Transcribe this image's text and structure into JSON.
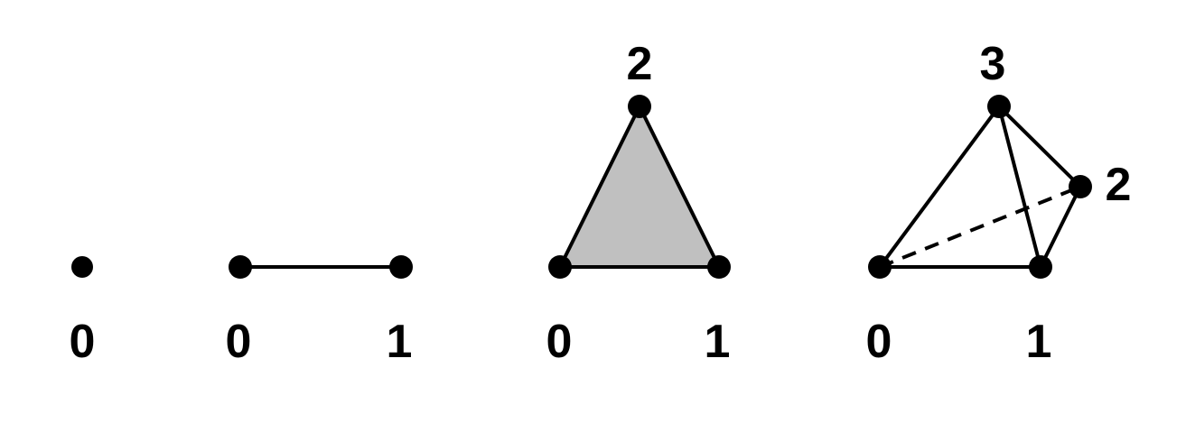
{
  "colors": {
    "stroke": "#000000",
    "vertex": "#000000",
    "face_fill": "#c0c0c0",
    "background": "#ffffff"
  },
  "simplices": [
    {
      "id": "s0",
      "vertex_labels": [
        "0"
      ]
    },
    {
      "id": "s1",
      "vertex_labels": [
        "0",
        "1"
      ]
    },
    {
      "id": "s2",
      "vertex_labels": [
        "0",
        "1",
        "2"
      ]
    },
    {
      "id": "s3",
      "vertex_labels": [
        "0",
        "1",
        "2",
        "3"
      ]
    }
  ]
}
